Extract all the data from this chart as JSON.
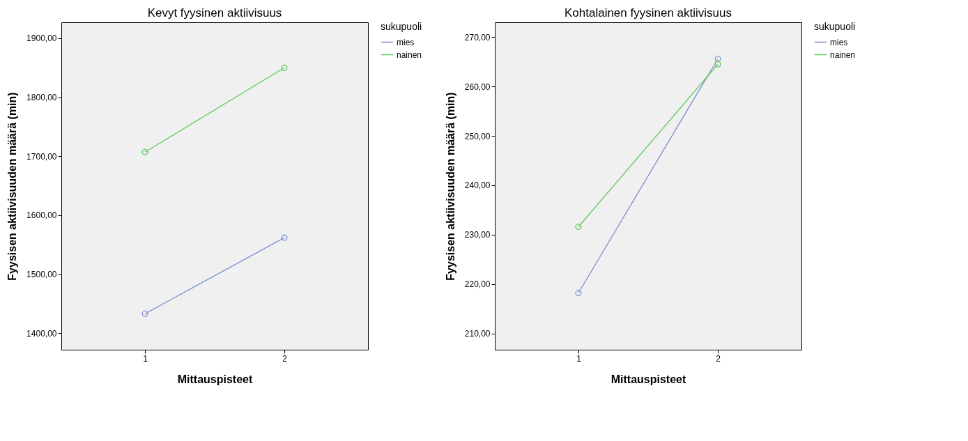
{
  "chart_data": [
    {
      "type": "line",
      "title": "Kevyt fyysinen aktiivisuus",
      "xlabel": "Mittauspisteet",
      "ylabel": "Fyysisen aktiivisuuden määrä (min)",
      "legend_title": "sukupuoli",
      "legend": "top right",
      "marker": "circle",
      "grid": false,
      "categories": [
        "1",
        "2"
      ],
      "series": [
        {
          "name": "mies",
          "color": "#7b8fd0",
          "values": [
            1433,
            1562
          ]
        },
        {
          "name": "nainen",
          "color": "#5cc85c",
          "values": [
            1707,
            1850
          ]
        }
      ],
      "ylim": [
        1372,
        1927
      ],
      "yticks": [
        {
          "value": 1400,
          "label": "1400,00"
        },
        {
          "value": 1500,
          "label": "1500,00"
        },
        {
          "value": 1600,
          "label": "1600,00"
        },
        {
          "value": 1700,
          "label": "1700,00"
        },
        {
          "value": 1800,
          "label": "1800,00"
        },
        {
          "value": 1900,
          "label": "1900,00"
        }
      ]
    },
    {
      "type": "line",
      "title": "Kohtalainen fyysinen aktiivisuus",
      "xlabel": "Mittauspisteet",
      "ylabel": "Fyysisen aktiivisuuden määrä (min)",
      "legend_title": "sukupuoli",
      "legend": "top right",
      "marker": "circle",
      "grid": false,
      "categories": [
        "1",
        "2"
      ],
      "series": [
        {
          "name": "mies",
          "color": "#7b8fd0",
          "values": [
            218.2,
            265.6
          ]
        },
        {
          "name": "nainen",
          "color": "#5cc85c",
          "values": [
            231.6,
            264.5
          ]
        }
      ],
      "ylim": [
        206.7,
        273
      ],
      "yticks": [
        {
          "value": 210,
          "label": "210,00"
        },
        {
          "value": 220,
          "label": "220,00"
        },
        {
          "value": 230,
          "label": "230,00"
        },
        {
          "value": 240,
          "label": "240,00"
        },
        {
          "value": 250,
          "label": "250,00"
        },
        {
          "value": 260,
          "label": "260,00"
        },
        {
          "value": 270,
          "label": "270,00"
        }
      ]
    }
  ]
}
